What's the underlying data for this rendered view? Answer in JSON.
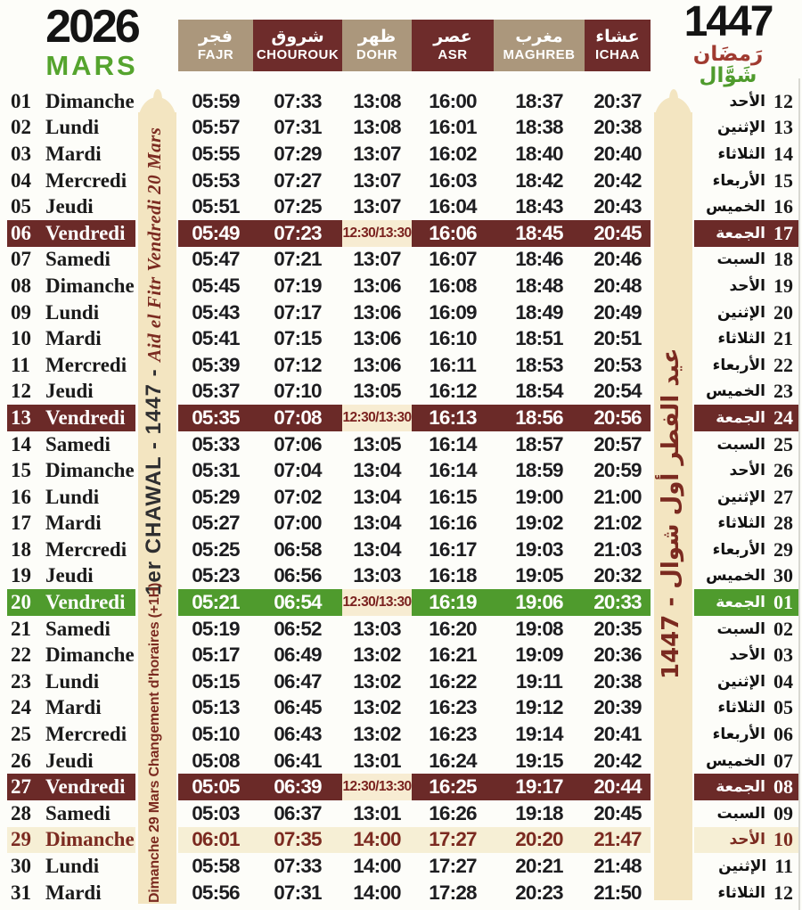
{
  "header": {
    "year": "2026",
    "month": "MARS",
    "hijri_year": "1447",
    "calligraphy_line1": "رَمضَان",
    "calligraphy_line2": "شَوَّال",
    "columns": [
      {
        "ar": "فجر",
        "fr": "FAJR"
      },
      {
        "ar": "شروق",
        "fr": "CHOUROUK"
      },
      {
        "ar": "ظهر",
        "fr": "DOHR"
      },
      {
        "ar": "عصر",
        "fr": "ASR"
      },
      {
        "ar": "مغرب",
        "fr": "MAGHREB"
      },
      {
        "ar": "عشاء",
        "fr": "ICHAA"
      }
    ]
  },
  "left_band": {
    "note_chawal": "1er CHAWAL - 1447 - ",
    "note_aid": "Aid el Fitr Vendredi 20 Mars",
    "note_change": "Dimanche 29 Mars Changement d'horaires (+1H)"
  },
  "right_band": {
    "note": "عيد الفطر أول شوال - 1447"
  },
  "colors": {
    "maroon": "#6b2a28",
    "green": "#4f9b2d",
    "tan": "#ab977c",
    "band_cream": "#f3e5c1",
    "highlight_cream": "#f6efd5"
  },
  "rows": [
    {
      "n": "01",
      "fr": "Dimanche",
      "t": [
        "05:59",
        "07:33",
        "13:08",
        "16:00",
        "18:37",
        "20:37"
      ],
      "h": "12",
      "ar": "الأحد",
      "hl": ""
    },
    {
      "n": "02",
      "fr": "Lundi",
      "t": [
        "05:57",
        "07:31",
        "13:08",
        "16:01",
        "18:38",
        "20:38"
      ],
      "h": "13",
      "ar": "الإثنين",
      "hl": ""
    },
    {
      "n": "03",
      "fr": "Mardi",
      "t": [
        "05:55",
        "07:29",
        "13:07",
        "16:02",
        "18:40",
        "20:40"
      ],
      "h": "14",
      "ar": "الثلاثاء",
      "hl": ""
    },
    {
      "n": "04",
      "fr": "Mercredi",
      "t": [
        "05:53",
        "07:27",
        "13:07",
        "16:03",
        "18:42",
        "20:42"
      ],
      "h": "15",
      "ar": "الأربعاء",
      "hl": ""
    },
    {
      "n": "05",
      "fr": "Jeudi",
      "t": [
        "05:51",
        "07:25",
        "13:07",
        "16:04",
        "18:43",
        "20:43"
      ],
      "h": "16",
      "ar": "الخميس",
      "hl": ""
    },
    {
      "n": "06",
      "fr": "Vendredi",
      "t": [
        "05:49",
        "07:23",
        "12:30/13:30",
        "16:06",
        "18:45",
        "20:45"
      ],
      "h": "17",
      "ar": "الجمعة",
      "hl": "maroon"
    },
    {
      "n": "07",
      "fr": "Samedi",
      "t": [
        "05:47",
        "07:21",
        "13:07",
        "16:07",
        "18:46",
        "20:46"
      ],
      "h": "18",
      "ar": "السبت",
      "hl": ""
    },
    {
      "n": "08",
      "fr": "Dimanche",
      "t": [
        "05:45",
        "07:19",
        "13:06",
        "16:08",
        "18:48",
        "20:48"
      ],
      "h": "19",
      "ar": "الأحد",
      "hl": ""
    },
    {
      "n": "09",
      "fr": "Lundi",
      "t": [
        "05:43",
        "07:17",
        "13:06",
        "16:09",
        "18:49",
        "20:49"
      ],
      "h": "20",
      "ar": "الإثنين",
      "hl": ""
    },
    {
      "n": "10",
      "fr": "Mardi",
      "t": [
        "05:41",
        "07:15",
        "13:06",
        "16:10",
        "18:51",
        "20:51"
      ],
      "h": "21",
      "ar": "الثلاثاء",
      "hl": ""
    },
    {
      "n": "11",
      "fr": "Mercredi",
      "t": [
        "05:39",
        "07:12",
        "13:06",
        "16:11",
        "18:53",
        "20:53"
      ],
      "h": "22",
      "ar": "الأربعاء",
      "hl": ""
    },
    {
      "n": "12",
      "fr": "Jeudi",
      "t": [
        "05:37",
        "07:10",
        "13:05",
        "16:12",
        "18:54",
        "20:54"
      ],
      "h": "23",
      "ar": "الخميس",
      "hl": ""
    },
    {
      "n": "13",
      "fr": "Vendredi",
      "t": [
        "05:35",
        "07:08",
        "12:30/13:30",
        "16:13",
        "18:56",
        "20:56"
      ],
      "h": "24",
      "ar": "الجمعة",
      "hl": "maroon"
    },
    {
      "n": "14",
      "fr": "Samedi",
      "t": [
        "05:33",
        "07:06",
        "13:05",
        "16:14",
        "18:57",
        "20:57"
      ],
      "h": "25",
      "ar": "السبت",
      "hl": ""
    },
    {
      "n": "15",
      "fr": "Dimanche",
      "t": [
        "05:31",
        "07:04",
        "13:04",
        "16:14",
        "18:59",
        "20:59"
      ],
      "h": "26",
      "ar": "الأحد",
      "hl": ""
    },
    {
      "n": "16",
      "fr": "Lundi",
      "t": [
        "05:29",
        "07:02",
        "13:04",
        "16:15",
        "19:00",
        "21:00"
      ],
      "h": "27",
      "ar": "الإثنين",
      "hl": ""
    },
    {
      "n": "17",
      "fr": "Mardi",
      "t": [
        "05:27",
        "07:00",
        "13:04",
        "16:16",
        "19:02",
        "21:02"
      ],
      "h": "28",
      "ar": "الثلاثاء",
      "hl": ""
    },
    {
      "n": "18",
      "fr": "Mercredi",
      "t": [
        "05:25",
        "06:58",
        "13:04",
        "16:17",
        "19:03",
        "21:03"
      ],
      "h": "29",
      "ar": "الأربعاء",
      "hl": ""
    },
    {
      "n": "19",
      "fr": "Jeudi",
      "t": [
        "05:23",
        "06:56",
        "13:03",
        "16:18",
        "19:05",
        "20:32"
      ],
      "h": "30",
      "ar": "الخميس",
      "hl": ""
    },
    {
      "n": "20",
      "fr": "Vendredi",
      "t": [
        "05:21",
        "06:54",
        "12:30/13:30",
        "16:19",
        "19:06",
        "20:33"
      ],
      "h": "01",
      "ar": "الجمعة",
      "hl": "green"
    },
    {
      "n": "21",
      "fr": "Samedi",
      "t": [
        "05:19",
        "06:52",
        "13:03",
        "16:20",
        "19:08",
        "20:35"
      ],
      "h": "02",
      "ar": "السبت",
      "hl": ""
    },
    {
      "n": "22",
      "fr": "Dimanche",
      "t": [
        "05:17",
        "06:49",
        "13:02",
        "16:21",
        "19:09",
        "20:36"
      ],
      "h": "03",
      "ar": "الأحد",
      "hl": ""
    },
    {
      "n": "23",
      "fr": "Lundi",
      "t": [
        "05:15",
        "06:47",
        "13:02",
        "16:22",
        "19:11",
        "20:38"
      ],
      "h": "04",
      "ar": "الإثنين",
      "hl": ""
    },
    {
      "n": "24",
      "fr": "Mardi",
      "t": [
        "05:13",
        "06:45",
        "13:02",
        "16:23",
        "19:12",
        "20:39"
      ],
      "h": "05",
      "ar": "الثلاثاء",
      "hl": ""
    },
    {
      "n": "25",
      "fr": "Mercredi",
      "t": [
        "05:10",
        "06:43",
        "13:02",
        "16:23",
        "19:14",
        "20:41"
      ],
      "h": "06",
      "ar": "الأربعاء",
      "hl": ""
    },
    {
      "n": "26",
      "fr": "Jeudi",
      "t": [
        "05:08",
        "06:41",
        "13:01",
        "16:24",
        "19:15",
        "20:42"
      ],
      "h": "07",
      "ar": "الخميس",
      "hl": ""
    },
    {
      "n": "27",
      "fr": "Vendredi",
      "t": [
        "05:05",
        "06:39",
        "12:30/13:30",
        "16:25",
        "19:17",
        "20:44"
      ],
      "h": "08",
      "ar": "الجمعة",
      "hl": "maroon"
    },
    {
      "n": "28",
      "fr": "Samedi",
      "t": [
        "05:03",
        "06:37",
        "13:01",
        "16:26",
        "19:18",
        "20:45"
      ],
      "h": "09",
      "ar": "السبت",
      "hl": ""
    },
    {
      "n": "29",
      "fr": "Dimanche",
      "t": [
        "06:01",
        "07:35",
        "14:00",
        "17:27",
        "20:20",
        "21:47"
      ],
      "h": "10",
      "ar": "الأحد",
      "hl": "cream"
    },
    {
      "n": "30",
      "fr": "Lundi",
      "t": [
        "05:58",
        "07:33",
        "14:00",
        "17:27",
        "20:21",
        "21:48"
      ],
      "h": "11",
      "ar": "الإثنين",
      "hl": ""
    },
    {
      "n": "31",
      "fr": "Mardi",
      "t": [
        "05:56",
        "07:31",
        "14:00",
        "17:28",
        "20:23",
        "21:50"
      ],
      "h": "12",
      "ar": "الثلاثاء",
      "hl": ""
    }
  ]
}
